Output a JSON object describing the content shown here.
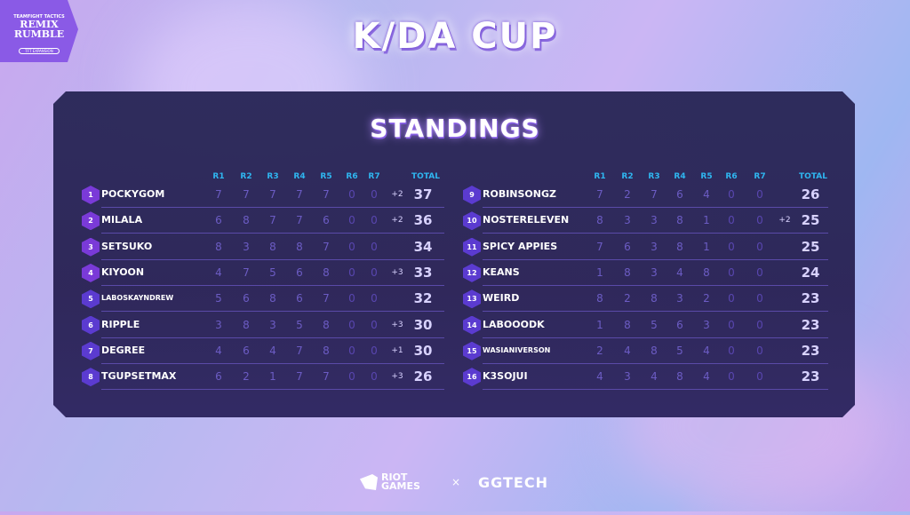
{
  "logo": {
    "line1": "TEAMFIGHT TACTICS",
    "line2": "REMIX RUMBLE",
    "line3": "TFT EXPANSION"
  },
  "title": "K/DA CUP",
  "subtitle": "STANDINGS",
  "headers": {
    "rounds": [
      "R1",
      "R2",
      "R3",
      "R4",
      "R5",
      "R6",
      "R7"
    ],
    "total": "TOTAL"
  },
  "standings": [
    {
      "rank": "1",
      "name": "POCKYGOM",
      "rounds": [
        7,
        7,
        7,
        7,
        7,
        0,
        0
      ],
      "bonus": "+2",
      "total": "37"
    },
    {
      "rank": "2",
      "name": "MILALA",
      "rounds": [
        6,
        8,
        7,
        7,
        6,
        0,
        0
      ],
      "bonus": "+2",
      "total": "36"
    },
    {
      "rank": "3",
      "name": "SETSUKO",
      "rounds": [
        8,
        3,
        8,
        8,
        7,
        0,
        0
      ],
      "bonus": "",
      "total": "34"
    },
    {
      "rank": "4",
      "name": "KIYOON",
      "rounds": [
        4,
        7,
        5,
        6,
        8,
        0,
        0
      ],
      "bonus": "+3",
      "total": "33"
    },
    {
      "rank": "5",
      "name": "LABOSKAYNDREW",
      "rounds": [
        5,
        6,
        8,
        6,
        7,
        0,
        0
      ],
      "bonus": "",
      "total": "32"
    },
    {
      "rank": "6",
      "name": "RIPPLE",
      "rounds": [
        3,
        8,
        3,
        5,
        8,
        0,
        0
      ],
      "bonus": "+3",
      "total": "30"
    },
    {
      "rank": "7",
      "name": "DEGREE",
      "rounds": [
        4,
        6,
        4,
        7,
        8,
        0,
        0
      ],
      "bonus": "+1",
      "total": "30"
    },
    {
      "rank": "8",
      "name": "TGUPSETMAX",
      "rounds": [
        6,
        2,
        1,
        7,
        7,
        0,
        0
      ],
      "bonus": "+3",
      "total": "26"
    },
    {
      "rank": "9",
      "name": "ROBINSONGZ",
      "rounds": [
        7,
        2,
        7,
        6,
        4,
        0,
        0
      ],
      "bonus": "",
      "total": "26"
    },
    {
      "rank": "10",
      "name": "NOSTERELEVEN",
      "rounds": [
        8,
        3,
        3,
        8,
        1,
        0,
        0
      ],
      "bonus": "+2",
      "total": "25"
    },
    {
      "rank": "11",
      "name": "SPICY APPIES",
      "rounds": [
        7,
        6,
        3,
        8,
        1,
        0,
        0
      ],
      "bonus": "",
      "total": "25"
    },
    {
      "rank": "12",
      "name": "KEANS",
      "rounds": [
        1,
        8,
        3,
        4,
        8,
        0,
        0
      ],
      "bonus": "",
      "total": "24"
    },
    {
      "rank": "13",
      "name": "WEIRD",
      "rounds": [
        8,
        2,
        8,
        3,
        2,
        0,
        0
      ],
      "bonus": "",
      "total": "23"
    },
    {
      "rank": "14",
      "name": "LABOOODK",
      "rounds": [
        1,
        8,
        5,
        6,
        3,
        0,
        0
      ],
      "bonus": "",
      "total": "23"
    },
    {
      "rank": "15",
      "name": "WASIANIVERSON",
      "rounds": [
        2,
        4,
        8,
        5,
        4,
        0,
        0
      ],
      "bonus": "",
      "total": "23"
    },
    {
      "rank": "16",
      "name": "K3SOJUI",
      "rounds": [
        4,
        3,
        4,
        8,
        4,
        0,
        0
      ],
      "bonus": "",
      "total": "23"
    }
  ],
  "footer": {
    "sponsor1": "RIOT GAMES",
    "separator": "×",
    "sponsor2": "GGTECH"
  },
  "colors": {
    "panel": "#2a2858",
    "header": "#2fb6f0",
    "badge": "#6a38d6",
    "accent": "#8a5ae6"
  }
}
